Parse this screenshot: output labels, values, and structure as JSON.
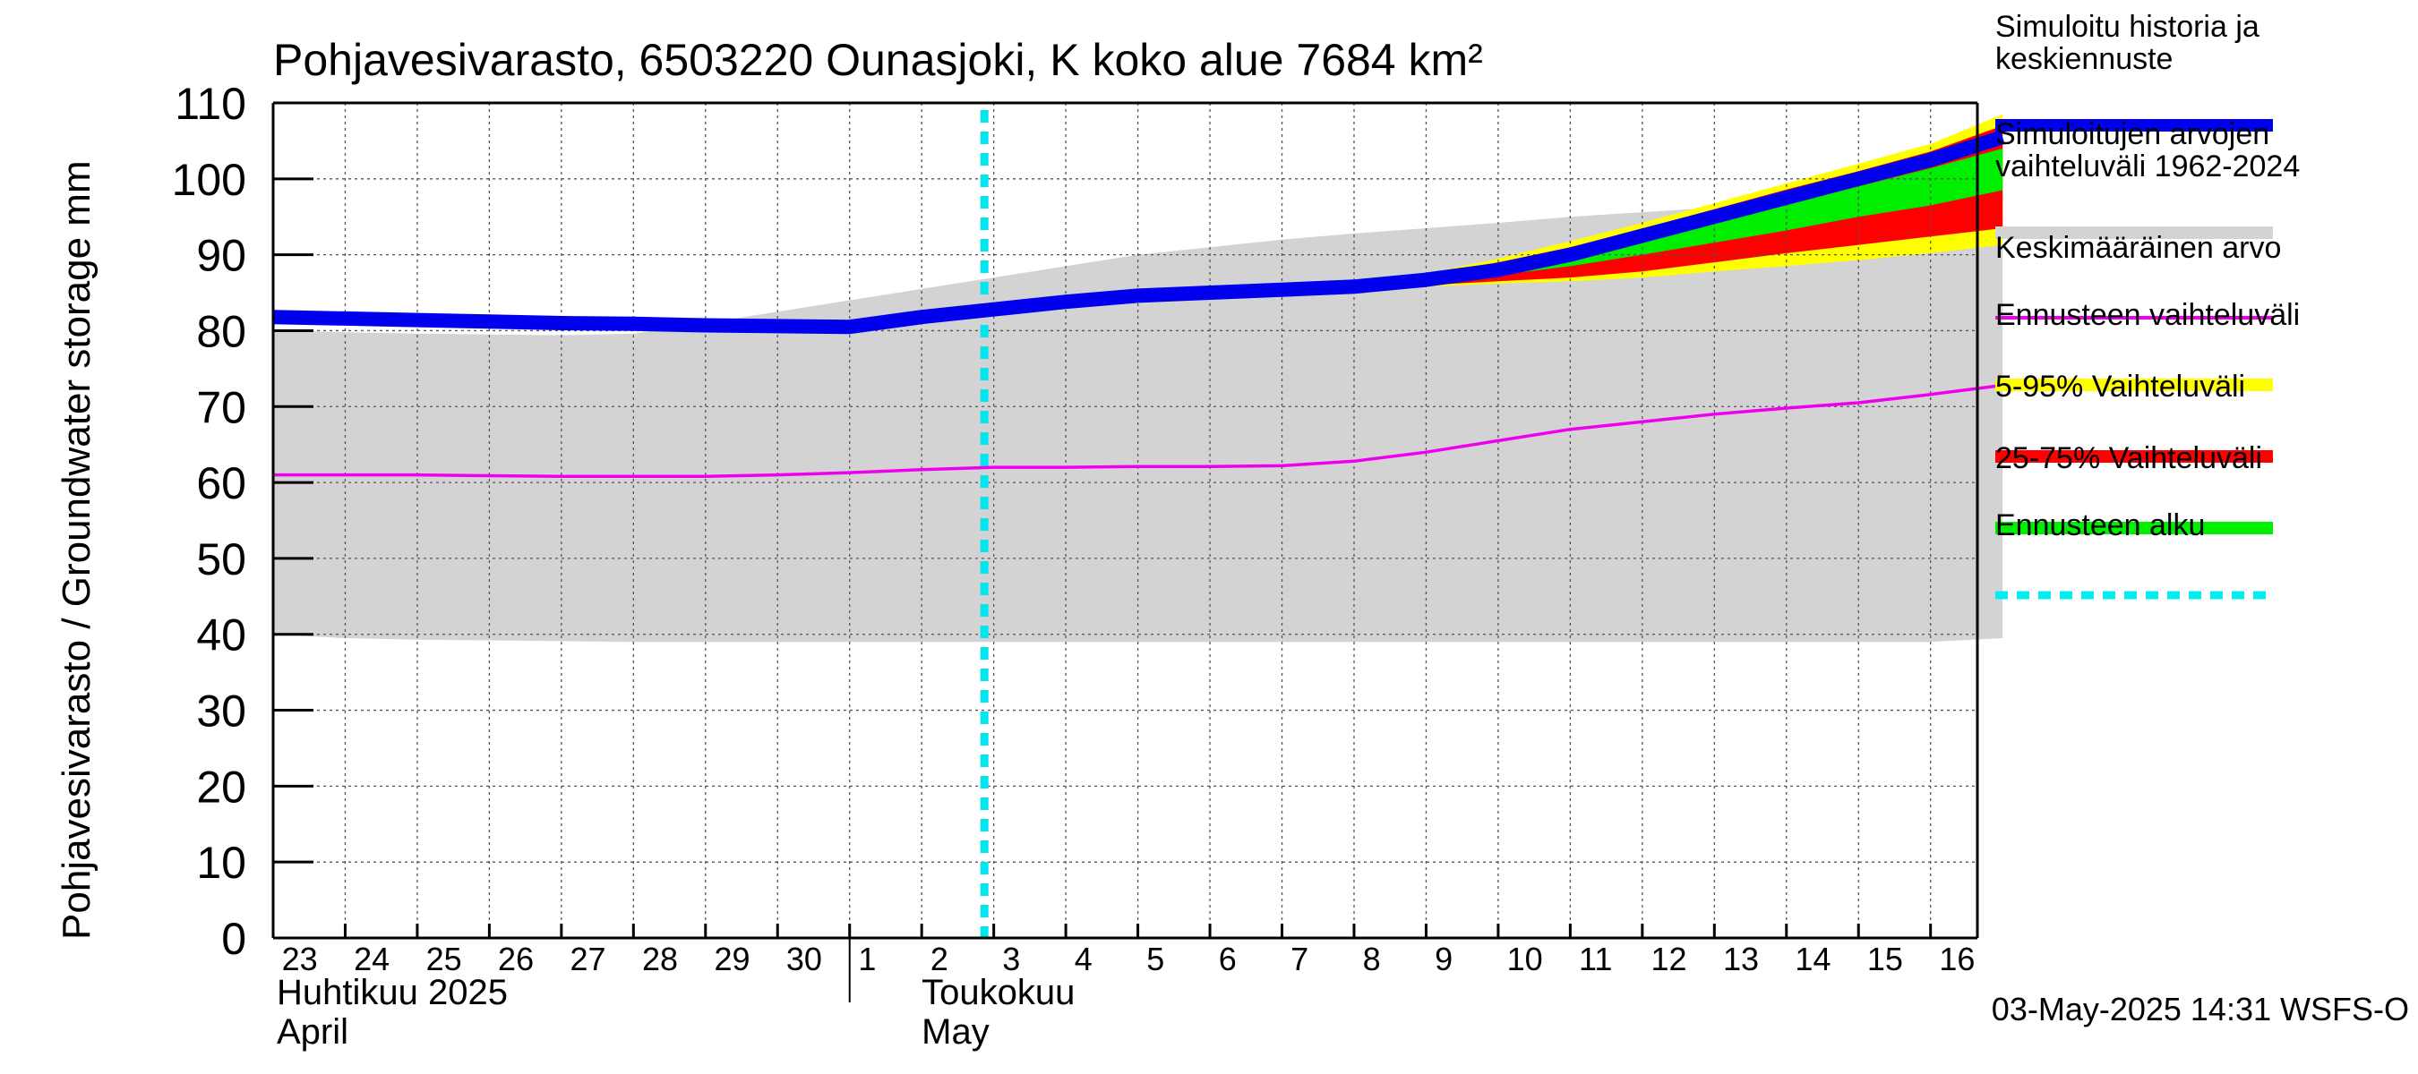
{
  "chart_data": {
    "type": "area",
    "title": "Pohjavesivarasto, 6503220 Ounasjoki, K koko alue 7684 km²",
    "ylabel": "Pohjavesivarasto / Groundwater storage   mm",
    "ylim": [
      0,
      110
    ],
    "yticks": [
      0,
      10,
      20,
      30,
      40,
      50,
      60,
      70,
      80,
      90,
      100,
      110
    ],
    "x_day_labels": [
      "23",
      "24",
      "25",
      "26",
      "27",
      "28",
      "29",
      "30",
      "1",
      "2",
      "3",
      "4",
      "5",
      "6",
      "7",
      "8",
      "9",
      "10",
      "11",
      "12",
      "13",
      "14",
      "15",
      "16"
    ],
    "month_labels": [
      {
        "fi": "Huhtikuu  2025",
        "en": "April"
      },
      {
        "fi": "Toukokuu",
        "en": "May"
      }
    ],
    "grid": true,
    "legend_position": "right",
    "forecast_start_index": 10,
    "series": [
      {
        "name": "Simuloitujen arvojen vaihteluväli 1962-2024",
        "kind": "band",
        "color": "#d3d3d3",
        "x": [
          0,
          1,
          2,
          3,
          4,
          5,
          6,
          7,
          8,
          9,
          10,
          11,
          12,
          13,
          14,
          15,
          16,
          17,
          18,
          19,
          20,
          21,
          22,
          23,
          24
        ],
        "lower": [
          40,
          39.5,
          39.3,
          39.2,
          39.1,
          39,
          39,
          39,
          39,
          39,
          39,
          39,
          39,
          39,
          39,
          39,
          39,
          39,
          39,
          39,
          39,
          39,
          39,
          39,
          39.5
        ],
        "upper": [
          80,
          79.8,
          79.6,
          79.5,
          79.4,
          79.6,
          81,
          82.5,
          84,
          85.5,
          87,
          88.5,
          90,
          91,
          92,
          92.8,
          93.5,
          94.2,
          95,
          95.6,
          96.2,
          96.7,
          97.1,
          97.4,
          98
        ]
      },
      {
        "name": "Ennusteen vaihteluväli",
        "kind": "band",
        "color": "#ffff00",
        "x": [
          15,
          16,
          17,
          18,
          19,
          20,
          21,
          22,
          23,
          24
        ],
        "lower": [
          85.5,
          85.8,
          86.2,
          86.5,
          87,
          87.8,
          88.5,
          89.3,
          90.2,
          91.3
        ],
        "upper": [
          85.9,
          87.5,
          89.5,
          91.8,
          94.2,
          96.8,
          99.4,
          102,
          104.6,
          108.5
        ]
      },
      {
        "name": "5-95% Vaihteluväli",
        "kind": "band",
        "color": "#ff0000",
        "x": [
          15,
          16,
          17,
          18,
          19,
          20,
          21,
          22,
          23,
          24
        ],
        "lower": [
          85.6,
          86,
          86.5,
          87,
          87.8,
          89,
          90.2,
          91.3,
          92.4,
          93.5
        ],
        "upper": [
          85.9,
          87.2,
          89,
          91,
          93.4,
          96,
          98.6,
          101,
          103.6,
          107
        ]
      },
      {
        "name": "25-75% Vaihteluväli",
        "kind": "band",
        "color": "#00ee00",
        "x": [
          15,
          16,
          17,
          18,
          19,
          20,
          21,
          22,
          23,
          24
        ],
        "lower": [
          85.6,
          86.3,
          87.3,
          88.5,
          90,
          91.6,
          93.2,
          95,
          96.5,
          98.5
        ],
        "upper": [
          85.8,
          86.9,
          88.3,
          90,
          92,
          94.2,
          96.6,
          99,
          101.4,
          104
        ]
      },
      {
        "name": "Keskimääräinen arvo",
        "kind": "line",
        "color": "#ee00ee",
        "x": [
          0,
          1,
          2,
          3,
          4,
          5,
          6,
          7,
          8,
          9,
          10,
          11,
          12,
          13,
          14,
          15,
          16,
          17,
          18,
          19,
          20,
          21,
          22,
          23,
          24
        ],
        "values": [
          61,
          61,
          61,
          60.9,
          60.8,
          60.8,
          60.8,
          61,
          61.3,
          61.7,
          62,
          62,
          62.1,
          62.1,
          62.2,
          62.8,
          64,
          65.5,
          67,
          68,
          69,
          69.8,
          70.5,
          71.6,
          72.8
        ]
      },
      {
        "name": "Simuloitu historia ja keskiennuste",
        "kind": "line",
        "color": "#0000ee",
        "x": [
          0,
          1,
          2,
          3,
          4,
          5,
          6,
          7,
          8,
          9,
          10,
          11,
          12,
          13,
          14,
          15,
          16,
          17,
          18,
          19,
          20,
          21,
          22,
          23,
          24
        ],
        "values": [
          81.8,
          81.6,
          81.4,
          81.2,
          81,
          80.9,
          80.7,
          80.6,
          80.5,
          81.8,
          82.8,
          83.8,
          84.6,
          85,
          85.4,
          85.8,
          86.7,
          88,
          90,
          92.5,
          95,
          97.5,
          100,
          102.5,
          105.5
        ]
      }
    ],
    "legend": [
      {
        "label": "Simuloitu historia ja keskiennuste",
        "color": "#0000ee",
        "style": "solid"
      },
      {
        "label": "Simuloitujen arvojen vaihteluväli 1962-2024",
        "color": "#d3d3d3",
        "style": "solid"
      },
      {
        "label": "Keskimääräinen arvo",
        "color": "#ee00ee",
        "style": "thin"
      },
      {
        "label": "Ennusteen vaihteluväli",
        "color": "#ffff00",
        "style": "solid"
      },
      {
        "label": "5-95% Vaihteluväli",
        "color": "#ff0000",
        "style": "solid"
      },
      {
        "label": "25-75% Vaihteluväli",
        "color": "#00ee00",
        "style": "solid"
      },
      {
        "label": "Ennusteen alku",
        "color": "#00eeee",
        "style": "dashed"
      }
    ],
    "footer": "03-May-2025 14:31 WSFS-O"
  }
}
